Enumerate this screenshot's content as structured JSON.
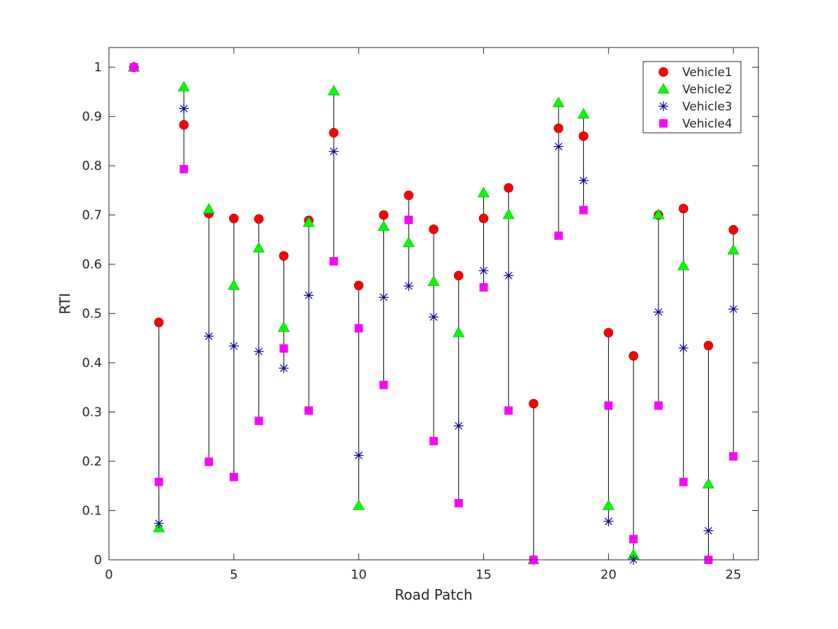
{
  "chart_data": {
    "type": "scatter",
    "title": "",
    "xlabel": "Road Patch",
    "ylabel": "RTI",
    "xlim": [
      0,
      26
    ],
    "ylim": [
      0,
      1.04
    ],
    "xticks": [
      0,
      5,
      10,
      15,
      20,
      25
    ],
    "yticks": [
      0,
      0.1,
      0.2,
      0.3,
      0.4,
      0.5,
      0.6,
      0.7,
      0.8,
      0.9,
      1
    ],
    "xtick_labels": [
      "0",
      "5",
      "10",
      "15",
      "20",
      "25"
    ],
    "ytick_labels": [
      "0",
      "0.1",
      "0.2",
      "0.3",
      "0.4",
      "0.5",
      "0.6",
      "0.7",
      "0.8",
      "0.9",
      "1"
    ],
    "grid": false,
    "legend_position": "top-right",
    "range_lines": "black vertical line spans min-to-max RTI at each road patch",
    "x": [
      1,
      2,
      3,
      4,
      5,
      6,
      7,
      8,
      9,
      10,
      11,
      12,
      13,
      14,
      15,
      16,
      17,
      18,
      19,
      20,
      21,
      22,
      23,
      24,
      25
    ],
    "series": [
      {
        "name": "Vehicle1",
        "marker": "circle",
        "color": "#ff0000",
        "values": [
          1.0,
          0.482,
          0.883,
          0.703,
          0.693,
          0.692,
          0.617,
          0.689,
          0.867,
          0.557,
          0.7,
          0.74,
          0.671,
          0.577,
          0.693,
          0.755,
          0.317,
          0.876,
          0.86,
          0.461,
          0.414,
          0.7,
          0.713,
          0.435,
          0.67
        ]
      },
      {
        "name": "Vehicle2",
        "marker": "triangle",
        "color": "#00ff00",
        "values": [
          1.0,
          0.065,
          0.96,
          0.712,
          0.557,
          0.633,
          0.472,
          0.685,
          0.952,
          0.11,
          0.677,
          0.644,
          0.565,
          0.461,
          0.745,
          0.701,
          0.0,
          0.928,
          0.905,
          0.11,
          0.01,
          0.701,
          0.597,
          0.154,
          0.629
        ]
      },
      {
        "name": "Vehicle3",
        "marker": "asterisk",
        "color": "#00008b",
        "values": [
          1.0,
          0.074,
          0.916,
          0.454,
          0.434,
          0.423,
          0.389,
          0.537,
          0.829,
          0.212,
          0.533,
          0.556,
          0.493,
          0.272,
          0.587,
          0.577,
          0.0,
          0.839,
          0.77,
          0.078,
          0.0,
          0.503,
          0.43,
          0.059,
          0.509
        ]
      },
      {
        "name": "Vehicle4",
        "marker": "square",
        "color": "#ff00ff",
        "values": [
          1.0,
          0.158,
          0.793,
          0.199,
          0.168,
          0.282,
          0.429,
          0.303,
          0.606,
          0.47,
          0.355,
          0.69,
          0.241,
          0.115,
          0.553,
          0.303,
          0.0,
          0.658,
          0.71,
          0.313,
          0.042,
          0.313,
          0.158,
          0.0,
          0.21
        ]
      }
    ]
  }
}
